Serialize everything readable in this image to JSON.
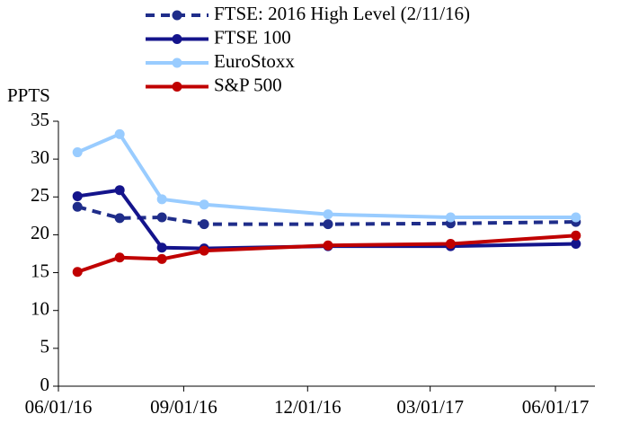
{
  "chart_data": {
    "type": "line",
    "y_label": "PPTS",
    "x": [
      "06/15/16",
      "07/16/16",
      "08/16/16",
      "09/16/16",
      "12/16/16",
      "03/16/17",
      "06/16/17"
    ],
    "xlim": [
      "06/01/16",
      "06/30/17"
    ],
    "xticks": [
      "06/01/16",
      "09/01/16",
      "12/01/16",
      "03/01/17",
      "06/01/17"
    ],
    "ylim": [
      0,
      35
    ],
    "yticks": [
      0,
      5,
      10,
      15,
      20,
      25,
      30,
      35
    ],
    "grid": false,
    "legend": "top",
    "series": [
      {
        "name": "FTSE: 2016 High Level (2/11/16)",
        "color": "#1f2d8a",
        "dashed": true,
        "values": [
          23.7,
          22.2,
          22.3,
          21.4,
          21.4,
          21.5,
          21.7
        ]
      },
      {
        "name": "FTSE 100",
        "color": "#14148c",
        "dashed": false,
        "values": [
          25.1,
          25.9,
          18.3,
          18.2,
          18.5,
          18.5,
          18.8
        ]
      },
      {
        "name": "EuroStoxx",
        "color": "#99ccff",
        "dashed": false,
        "values": [
          30.9,
          33.3,
          24.7,
          24.0,
          22.7,
          22.3,
          22.3
        ]
      },
      {
        "name": "S&P 500",
        "color": "#c00000",
        "dashed": false,
        "values": [
          15.1,
          17.0,
          16.8,
          17.9,
          18.6,
          18.8,
          19.9
        ]
      }
    ]
  }
}
